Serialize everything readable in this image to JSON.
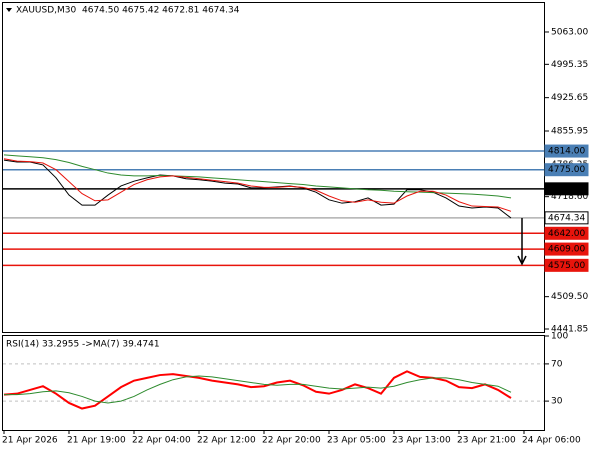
{
  "chart_data": [
    {
      "type": "line",
      "title": "XAUUSD,M30",
      "subtitle": "4674.50 4675.42 4672.81 4674.34",
      "ylim": [
        4435.6,
        5125.7
      ],
      "yticks": [
        {
          "value": 5063,
          "label": "5063.00"
        },
        {
          "value": 4995.35,
          "label": "4995.35"
        },
        {
          "value": 4925.65,
          "label": "4925.65"
        },
        {
          "value": 4855.95,
          "label": "4855.95"
        },
        {
          "value": 4786.25,
          "label": "4786.25"
        },
        {
          "value": 4718.6,
          "label": "4718.60"
        },
        {
          "value": 4509.5,
          "label": "4509.50"
        },
        {
          "value": 4441.85,
          "label": "4441.85"
        }
      ],
      "series": [
        {
          "color": "#000000",
          "values": [
            4795,
            4791,
            4791,
            4785,
            4758,
            4722,
            4701,
            4701,
            4722,
            4741,
            4751,
            4758,
            4764,
            4762,
            4756,
            4754,
            4751,
            4747,
            4745,
            4737,
            4737,
            4739,
            4741,
            4737,
            4728,
            4712,
            4705,
            4708,
            4716,
            4701,
            4703,
            4733,
            4733,
            4728,
            4716,
            4699,
            4695,
            4697,
            4695,
            4674,
            null
          ]
        },
        {
          "color": "#2e8b2e",
          "values": [
            4806,
            4804,
            4802,
            4800,
            4796,
            4790,
            4782,
            4775,
            4768,
            4764,
            4762,
            4762,
            4763,
            4762,
            4761,
            4760,
            4758,
            4756,
            4754,
            4752,
            4750,
            4748,
            4746,
            4744,
            4741,
            4739,
            4737,
            4735,
            4733,
            4732,
            4730,
            4729,
            4728,
            4727,
            4726,
            4725,
            4724,
            4722,
            4720,
            4716,
            null
          ]
        },
        {
          "color": "#e8140c",
          "values": [
            4798,
            4793,
            4792,
            4789,
            4775,
            4750,
            4725,
            4710,
            4712,
            4728,
            4744,
            4754,
            4760,
            4762,
            4759,
            4756,
            4753,
            4750,
            4747,
            4741,
            4738,
            4738,
            4740,
            4738,
            4732,
            4720,
            4710,
            4707,
            4712,
            4707,
            4705,
            4720,
            4730,
            4730,
            4722,
            4708,
            4699,
            4698,
            4697,
            4688,
            null
          ]
        }
      ],
      "levels": [
        {
          "value": 4814,
          "label": "4814.00",
          "color": "#4a7fb5"
        },
        {
          "value": 4775,
          "label": "4775.00",
          "color": "#4a7fb5"
        },
        {
          "value": 4735,
          "label": "4735.00",
          "color": "#000000"
        },
        {
          "value": 4674.34,
          "label": "4674.34",
          "color": "#b0b0b0"
        },
        {
          "value": 4642,
          "label": "4642.00",
          "color": "#e8140c"
        },
        {
          "value": 4609,
          "label": "4609.00",
          "color": "#e8140c"
        },
        {
          "value": 4575,
          "label": "4575.00",
          "color": "#e8140c"
        }
      ]
    },
    {
      "type": "line",
      "title": "RSI(14) 33.2955 ->MA(7) 39.4741",
      "categories": [
        "21 Apr 2026",
        null,
        null,
        null,
        null,
        "21 Apr 19:00",
        null,
        null,
        null,
        null,
        "22 Apr 04:00",
        null,
        null,
        null,
        null,
        "22 Apr 12:00",
        null,
        null,
        null,
        null,
        "22 Apr 20:00",
        null,
        null,
        null,
        null,
        "23 Apr 05:00",
        null,
        null,
        null,
        null,
        "23 Apr 13:00",
        null,
        null,
        null,
        null,
        "23 Apr 21:00",
        null,
        null,
        null,
        null,
        "24 Apr 06:00"
      ],
      "ylim": [
        0,
        100
      ],
      "yticks": [
        100,
        70,
        30
      ],
      "series": [
        {
          "color": "#ff0000",
          "values": [
            37,
            38,
            42,
            46,
            38,
            28,
            22,
            25,
            35,
            45,
            52,
            55,
            58,
            59,
            57,
            55,
            52,
            50,
            48,
            45,
            46,
            50,
            52,
            47,
            40,
            38,
            42,
            48,
            44,
            38,
            55,
            62,
            56,
            55,
            52,
            45,
            44,
            48,
            42,
            33.3,
            null
          ]
        },
        {
          "color": "#2e8b2e",
          "values": [
            37,
            37,
            38,
            40,
            41,
            39,
            35,
            30,
            28,
            30,
            35,
            42,
            48,
            53,
            56,
            57,
            56,
            54,
            52,
            50,
            48,
            47,
            48,
            48,
            46,
            44,
            43,
            44,
            45,
            44,
            46,
            50,
            53,
            55,
            55,
            53,
            50,
            48,
            46,
            39.5,
            null
          ]
        }
      ]
    }
  ]
}
